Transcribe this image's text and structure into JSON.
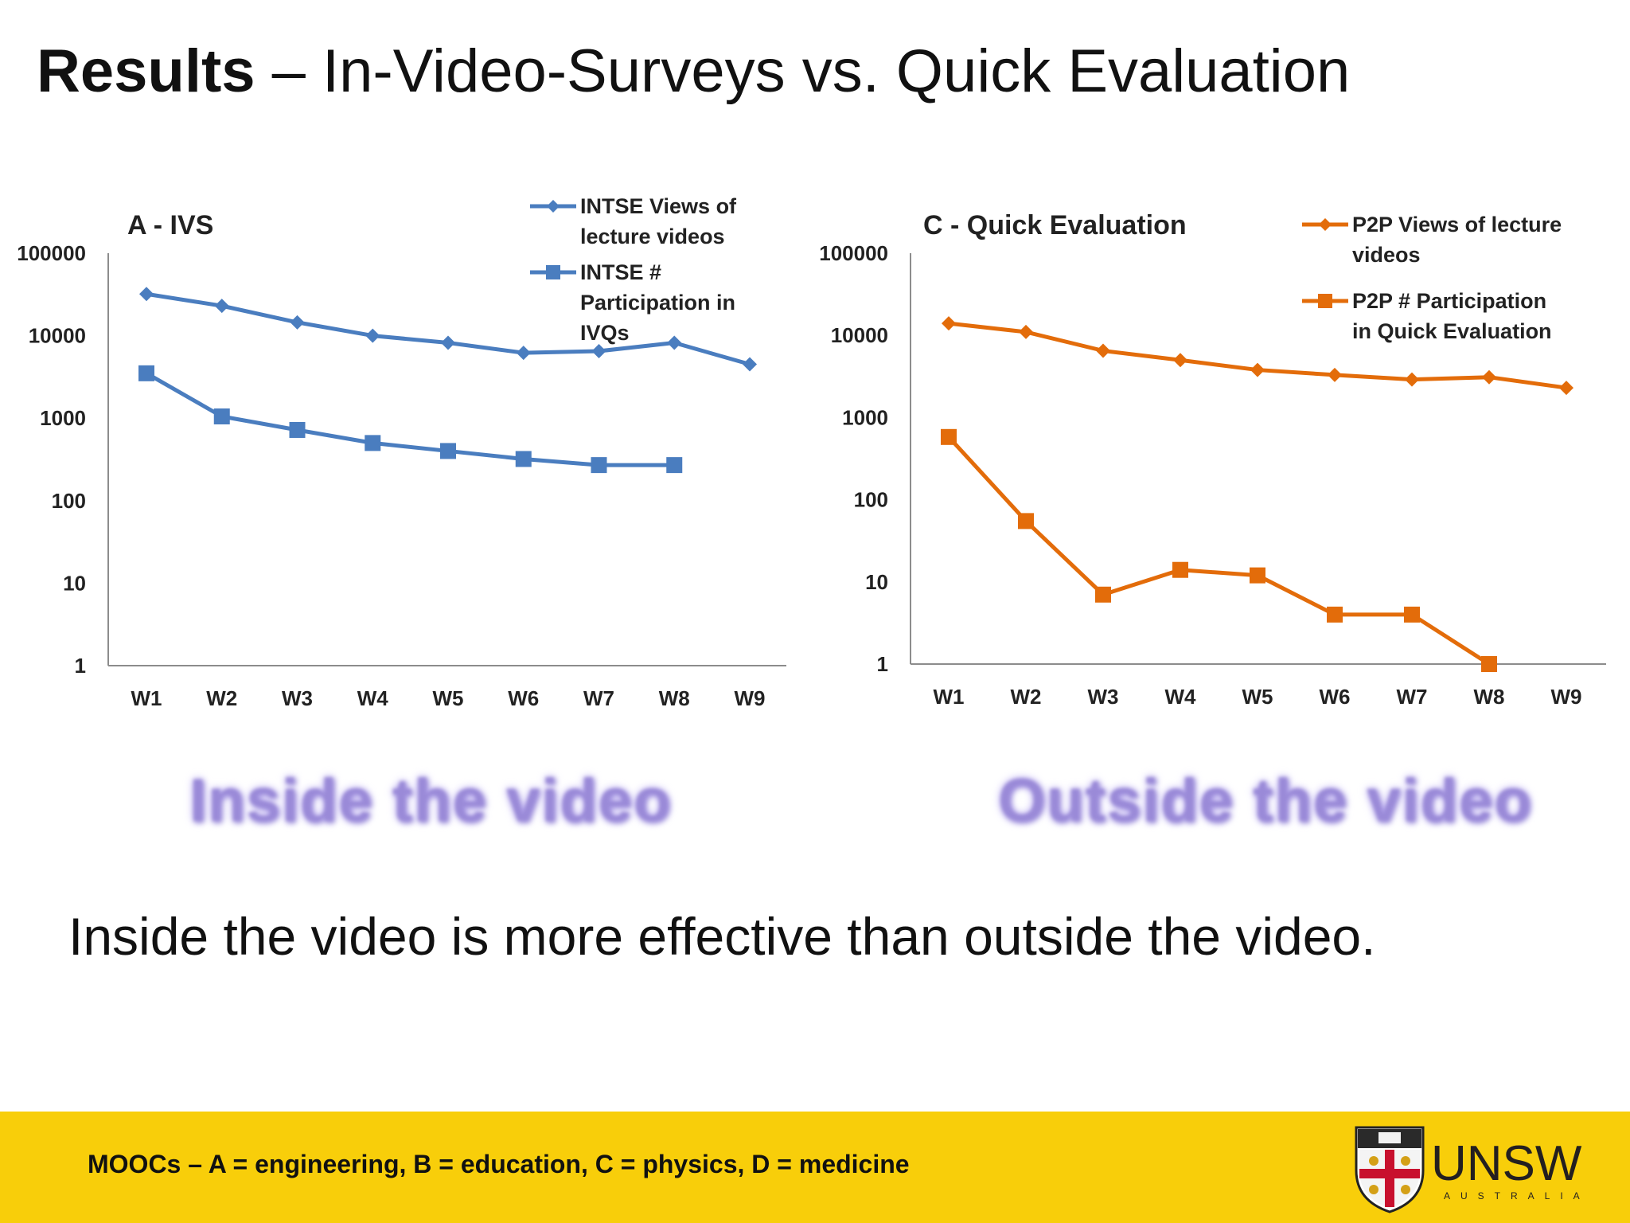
{
  "slide": {
    "title_bold": "Results",
    "title_rest": " –  In-Video-Surveys  vs. Quick Evaluation",
    "caption_left": "Inside the video",
    "caption_right": "Outside the video",
    "conclusion": "Inside the video is more effective than outside the video.",
    "footer_text": "MOOCs – A = engineering, B = education, C = physics, D = medicine",
    "logo_text": "UNSW",
    "logo_subtext": "AUSTRALIA"
  },
  "chart_data": [
    {
      "type": "line",
      "title": "A - IVS",
      "y_scale": "log",
      "ylim": [
        1,
        100000
      ],
      "y_ticks": [
        "100000",
        "10000",
        "1000",
        "100",
        "10",
        "1"
      ],
      "categories": [
        "W1",
        "W2",
        "W3",
        "W4",
        "W5",
        "W6",
        "W7",
        "W8",
        "W9"
      ],
      "grid": false,
      "legend_position": "top-right",
      "series": [
        {
          "name": "INTSE Views of lecture videos",
          "marker": "diamond",
          "color": "#4a7dbf",
          "values": [
            32000,
            23000,
            14500,
            10000,
            8200,
            6200,
            6500,
            8200,
            4500
          ]
        },
        {
          "name": "INTSE # Participation in IVQs",
          "marker": "square",
          "color": "#4a7dbf",
          "values": [
            3500,
            1050,
            720,
            500,
            400,
            320,
            270,
            270,
            null
          ]
        }
      ]
    },
    {
      "type": "line",
      "title": "C - Quick Evaluation",
      "y_scale": "log",
      "ylim": [
        1,
        100000
      ],
      "y_ticks": [
        "100000",
        "10000",
        "1000",
        "100",
        "10",
        "1"
      ],
      "categories": [
        "W1",
        "W2",
        "W3",
        "W4",
        "W5",
        "W6",
        "W7",
        "W8",
        "W9"
      ],
      "grid": false,
      "legend_position": "top-right",
      "series": [
        {
          "name": "P2P Views of lecture videos",
          "marker": "diamond",
          "color": "#e36c0a",
          "values": [
            14000,
            11000,
            6500,
            5000,
            3800,
            3300,
            2900,
            3100,
            2300
          ]
        },
        {
          "name": "P2P # Participation in Quick Evaluation",
          "marker": "square",
          "color": "#e36c0a",
          "values": [
            580,
            55,
            7,
            14,
            12,
            4,
            4,
            1,
            null
          ]
        }
      ]
    }
  ]
}
